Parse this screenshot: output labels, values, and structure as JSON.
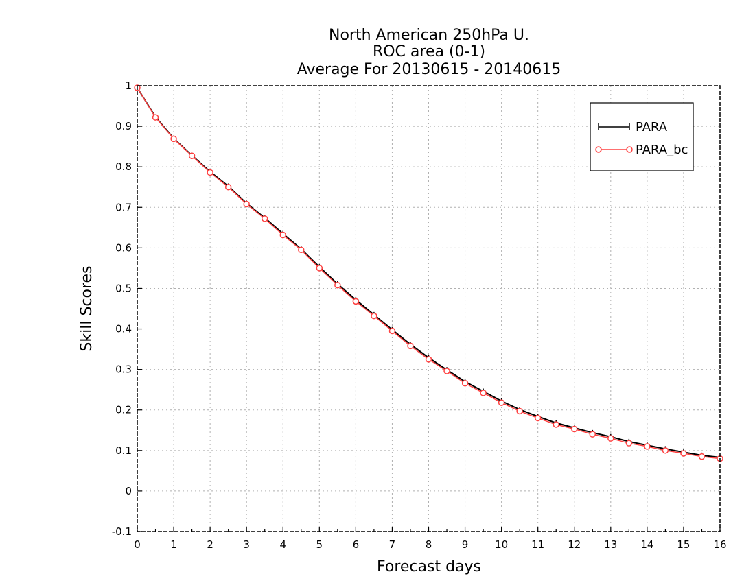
{
  "chart_data": {
    "type": "line",
    "title": [
      "North American 250hPa U.",
      "ROC area (0-1)",
      "Average For 20130615 - 20140615"
    ],
    "xlabel": "Forecast days",
    "ylabel": "Skill Scores",
    "xlim": [
      0,
      16
    ],
    "ylim": [
      -0.1,
      1
    ],
    "xticks": [
      0,
      1,
      2,
      3,
      4,
      5,
      6,
      7,
      8,
      9,
      10,
      11,
      12,
      13,
      14,
      15,
      16
    ],
    "yticks": [
      -0.1,
      0,
      0.1,
      0.2,
      0.3,
      0.4,
      0.5,
      0.6,
      0.7,
      0.8,
      0.9,
      1
    ],
    "ytick_labels": [
      "-0.1",
      "0",
      "0.1",
      "0.2",
      "0.3",
      "0.4",
      "0.5",
      "0.6",
      "0.7",
      "0.8",
      "0.9",
      "1"
    ],
    "grid": true,
    "legend_position": "top-right",
    "x": [
      0,
      0.5,
      1,
      1.5,
      2,
      2.5,
      3,
      3.5,
      4,
      4.5,
      5,
      5.5,
      6,
      6.5,
      7,
      7.5,
      8,
      8.5,
      9,
      9.5,
      10,
      10.5,
      11,
      11.5,
      12,
      12.5,
      13,
      13.5,
      14,
      14.5,
      15,
      15.5,
      16
    ],
    "series": [
      {
        "name": "PARA",
        "color": "#000000",
        "marker": "plus",
        "values": [
          0.995,
          0.923,
          0.87,
          0.828,
          0.788,
          0.752,
          0.71,
          0.674,
          0.635,
          0.597,
          0.553,
          0.511,
          0.472,
          0.435,
          0.398,
          0.362,
          0.329,
          0.299,
          0.27,
          0.246,
          0.222,
          0.201,
          0.184,
          0.168,
          0.156,
          0.144,
          0.134,
          0.122,
          0.113,
          0.104,
          0.096,
          0.088,
          0.083
        ]
      },
      {
        "name": "PARA_bc",
        "color": "#ff4040",
        "marker": "circle",
        "values": [
          0.995,
          0.922,
          0.869,
          0.827,
          0.786,
          0.75,
          0.708,
          0.672,
          0.632,
          0.595,
          0.55,
          0.508,
          0.468,
          0.432,
          0.395,
          0.358,
          0.325,
          0.296,
          0.266,
          0.242,
          0.218,
          0.197,
          0.18,
          0.164,
          0.153,
          0.14,
          0.13,
          0.118,
          0.11,
          0.1,
          0.093,
          0.085,
          0.08
        ]
      }
    ]
  }
}
